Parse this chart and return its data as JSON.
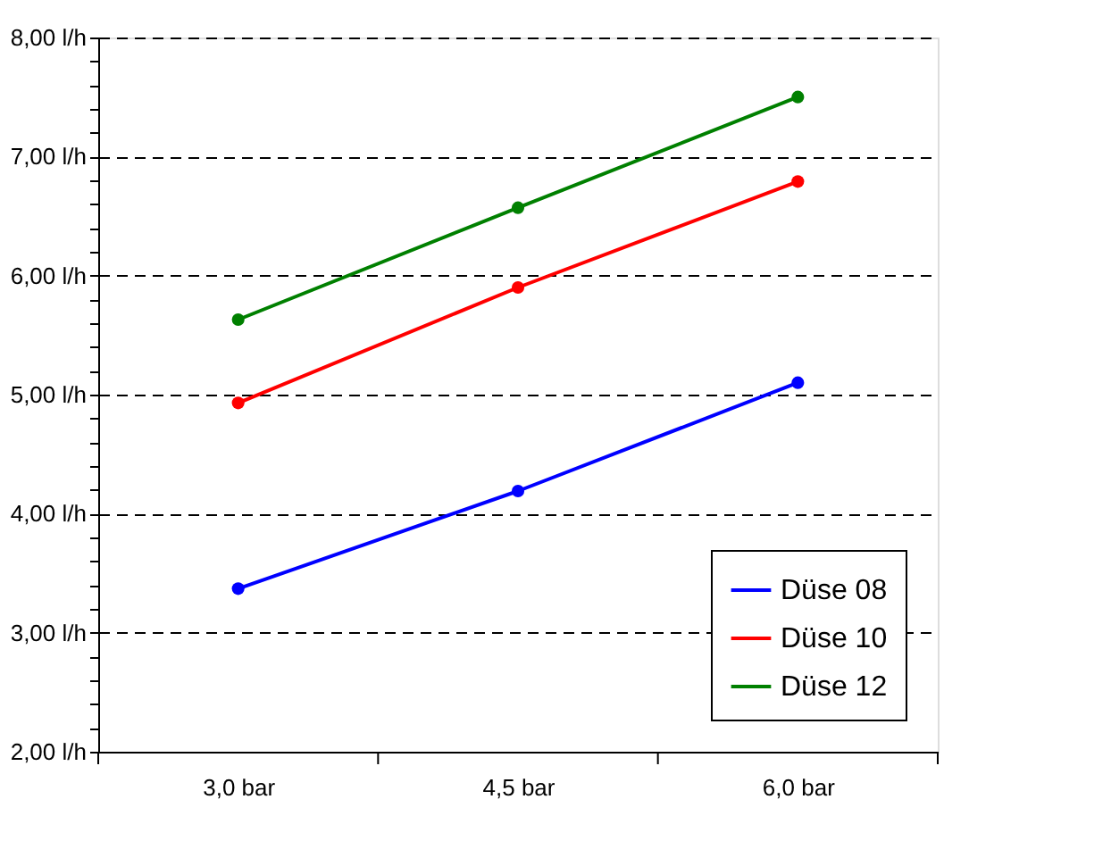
{
  "chart_data": {
    "type": "line",
    "categories": [
      "3,0 bar",
      "4,5 bar",
      "6,0 bar"
    ],
    "series": [
      {
        "name": "Düse 08",
        "color": "#0000ff",
        "values": [
          3.37,
          4.19,
          5.1
        ]
      },
      {
        "name": "Düse 10",
        "color": "#ff0000",
        "values": [
          4.93,
          5.9,
          6.79
        ]
      },
      {
        "name": "Düse 12",
        "color": "#008000",
        "values": [
          5.63,
          6.57,
          7.5
        ]
      }
    ],
    "ylim": [
      2,
      8
    ],
    "yticks": [
      {
        "value": 2,
        "label": "2,00 l/h"
      },
      {
        "value": 2.2,
        "label": null
      },
      {
        "value": 2.4,
        "label": null
      },
      {
        "value": 2.6,
        "label": null
      },
      {
        "value": 2.8,
        "label": null
      },
      {
        "value": 3,
        "label": "3,00 l/h"
      },
      {
        "value": 3.2,
        "label": null
      },
      {
        "value": 3.4,
        "label": null
      },
      {
        "value": 3.6,
        "label": null
      },
      {
        "value": 3.8,
        "label": null
      },
      {
        "value": 4,
        "label": "4,00 l/h"
      },
      {
        "value": 4.2,
        "label": null
      },
      {
        "value": 4.4,
        "label": null
      },
      {
        "value": 4.6,
        "label": null
      },
      {
        "value": 4.8,
        "label": null
      },
      {
        "value": 5,
        "label": "5,00 l/h"
      },
      {
        "value": 5.2,
        "label": null
      },
      {
        "value": 5.4,
        "label": null
      },
      {
        "value": 5.6,
        "label": null
      },
      {
        "value": 5.8,
        "label": null
      },
      {
        "value": 6,
        "label": "6,00 l/h"
      },
      {
        "value": 6.2,
        "label": null
      },
      {
        "value": 6.4,
        "label": null
      },
      {
        "value": 6.6,
        "label": null
      },
      {
        "value": 6.8,
        "label": null
      },
      {
        "value": 7,
        "label": "7,00 l/h"
      },
      {
        "value": 7.2,
        "label": null
      },
      {
        "value": 7.4,
        "label": null
      },
      {
        "value": 7.6,
        "label": null
      },
      {
        "value": 7.8,
        "label": null
      },
      {
        "value": 8,
        "label": "8,00 l/h"
      }
    ],
    "grid": "y",
    "legend": "bottom right",
    "marker": "circle",
    "line_style": "solid"
  }
}
